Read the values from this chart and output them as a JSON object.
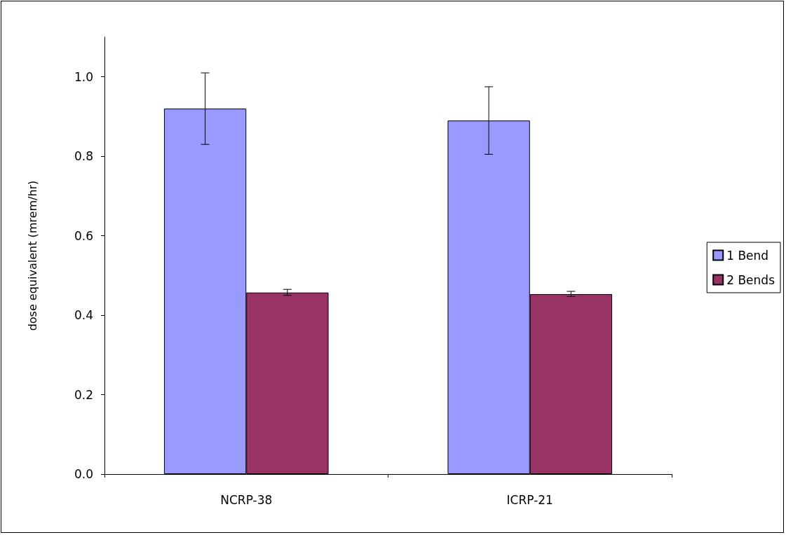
{
  "chart_data": {
    "type": "bar",
    "ylabel": "dose equivalent (mrem/hr)",
    "categories": [
      "NCRP-38",
      "ICRP-21"
    ],
    "series": [
      {
        "name": "1 Bend",
        "color": "#9999ff",
        "values": [
          0.92,
          0.89
        ],
        "errors": [
          [
            0.83,
            1.01
          ],
          [
            0.805,
            0.975
          ]
        ]
      },
      {
        "name": "2 Bends",
        "color": "#993366",
        "values": [
          0.457,
          0.453
        ],
        "errors": [
          [
            0.45,
            0.465
          ],
          [
            0.447,
            0.46
          ]
        ]
      }
    ],
    "ylim": [
      0,
      1.1
    ],
    "yticks": [
      {
        "value": 0,
        "label": "0.0"
      },
      0.2,
      0.4,
      0.6,
      0.8,
      {
        "value": 1,
        "label": "1.0"
      }
    ],
    "grid": false,
    "legend": "right"
  }
}
